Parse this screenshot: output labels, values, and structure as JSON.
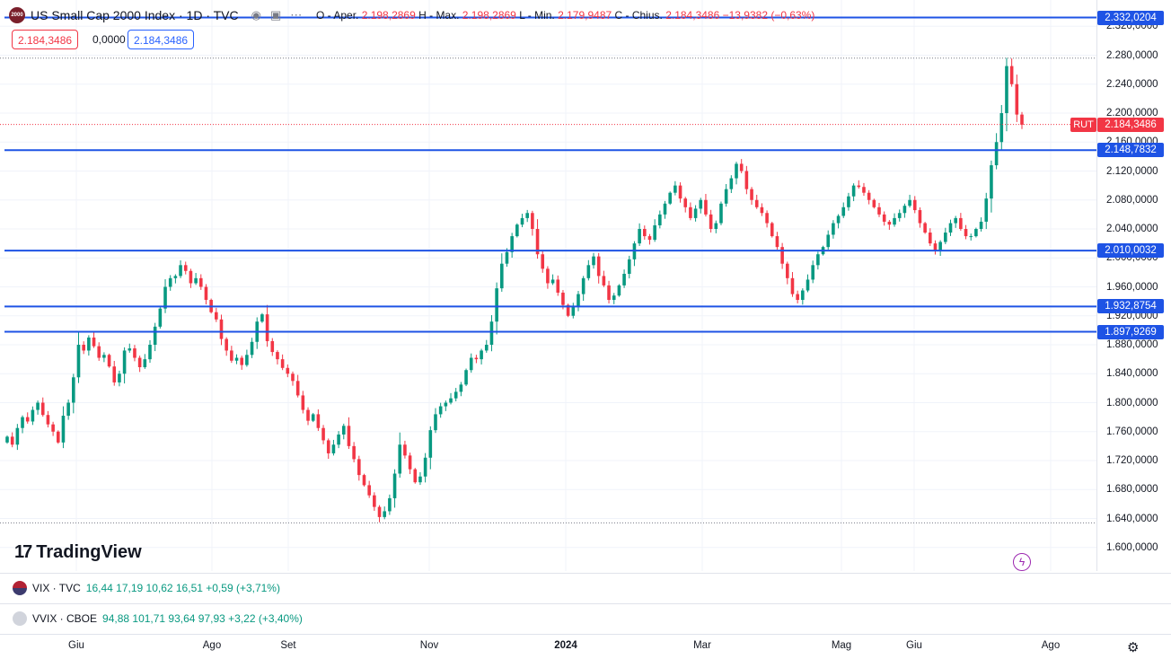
{
  "legend": {
    "logo_text": "2000",
    "title": "US Small Cap 2000 Index · 1D · TVC",
    "icons": [
      "eye-icon",
      "settings-icon",
      "more-icon"
    ],
    "ohlc": {
      "open_label": "O - Aper.",
      "open": "2.198,2869",
      "high_label": "H - Max.",
      "high": "2.198,2869",
      "low_label": "L - Min.",
      "low": "2.179,9487",
      "close_label": "C - Chius.",
      "close": "2.184,3486",
      "change": "−13,9382 (−0,63%)"
    }
  },
  "pills": {
    "sell": "2.184,3486",
    "spread": "0,0000",
    "buy": "2.184,3486"
  },
  "price_axis": {
    "ticks": [
      "2.320,0000",
      "2.280,0000",
      "2.240,0000",
      "2.200,0000",
      "2.160,0000",
      "2.120,0000",
      "2.080,0000",
      "2.040,0000",
      "2.000,0000",
      "1.960,0000",
      "1.920,0000",
      "1.880,0000",
      "1.840,0000",
      "1.800,0000",
      "1.760,0000",
      "1.720,0000",
      "1.680,0000",
      "1.640,0000",
      "1.600,0000"
    ],
    "tick_values": [
      2320,
      2280,
      2240,
      2200,
      2160,
      2120,
      2080,
      2040,
      2000,
      1960,
      1920,
      1880,
      1840,
      1800,
      1760,
      1720,
      1680,
      1640,
      1600
    ],
    "symbol_tag": "RUT",
    "last_price": "2.184,3486",
    "last_value": 2184.3486
  },
  "horizontal_lines": [
    {
      "label": "2.332,0204",
      "value": 2332.0204
    },
    {
      "label": "2.148,7832",
      "value": 2148.7832
    },
    {
      "label": "2.010,0032",
      "value": 2010.0032
    },
    {
      "label": "1.932,8754",
      "value": 1932.8754
    },
    {
      "label": "1.897,9269",
      "value": 1897.9269
    }
  ],
  "dotted_lines": [
    {
      "value": 2276
    },
    {
      "value": 1634
    }
  ],
  "time_axis": [
    {
      "label": "Giu",
      "bold": false
    },
    {
      "label": "Ago",
      "bold": false
    },
    {
      "label": "Set",
      "bold": false
    },
    {
      "label": "Nov",
      "bold": false
    },
    {
      "label": "2024",
      "bold": true
    },
    {
      "label": "Mar",
      "bold": false
    },
    {
      "label": "Mag",
      "bold": false
    },
    {
      "label": "Giu",
      "bold": false
    },
    {
      "label": "Ago",
      "bold": false
    }
  ],
  "watermark": "TradingView",
  "indicators": [
    {
      "symbol": "VIX · TVC",
      "values": "16,44  17,19  10,62  16,51  +0,59 (+3,71%)"
    },
    {
      "symbol": "VVIX · CBOE",
      "values": "94,88  101,71  93,64  97,93  +3,22 (+3,40%)"
    }
  ],
  "colors": {
    "up": "#089981",
    "down": "#f23645",
    "line": "#2962ff",
    "flag": "#1e53e5"
  },
  "chart_data": {
    "type": "candlestick",
    "series_closes": [
      1753,
      1742,
      1765,
      1780,
      1774,
      1790,
      1800,
      1783,
      1770,
      1760,
      1745,
      1782,
      1800,
      1835,
      1880,
      1872,
      1890,
      1878,
      1862,
      1866,
      1850,
      1828,
      1840,
      1872,
      1875,
      1862,
      1849,
      1860,
      1880,
      1905,
      1930,
      1960,
      1972,
      1975,
      1990,
      1982,
      1965,
      1972,
      1960,
      1942,
      1925,
      1915,
      1888,
      1872,
      1858,
      1862,
      1852,
      1866,
      1884,
      1912,
      1922,
      1885,
      1870,
      1860,
      1848,
      1840,
      1830,
      1810,
      1790,
      1775,
      1784,
      1765,
      1748,
      1730,
      1742,
      1756,
      1768,
      1740,
      1722,
      1700,
      1686,
      1672,
      1656,
      1642,
      1650,
      1668,
      1702,
      1742,
      1727,
      1708,
      1690,
      1698,
      1724,
      1762,
      1784,
      1795,
      1800,
      1806,
      1815,
      1825,
      1845,
      1862,
      1860,
      1872,
      1880,
      1912,
      1958,
      1992,
      2008,
      2030,
      2046,
      2055,
      2062,
      2040,
      2005,
      1985,
      1965,
      1970,
      1952,
      1935,
      1920,
      1932,
      1950,
      1972,
      1990,
      2002,
      1975,
      1962,
      1942,
      1948,
      1962,
      1978,
      1998,
      2020,
      2040,
      2030,
      2025,
      2045,
      2060,
      2075,
      2090,
      2100,
      2082,
      2070,
      2055,
      2068,
      2080,
      2060,
      2040,
      2048,
      2075,
      2095,
      2110,
      2130,
      2120,
      2095,
      2080,
      2070,
      2062,
      2048,
      2030,
      2015,
      1992,
      1972,
      1950,
      1942,
      1955,
      1970,
      1990,
      2005,
      2015,
      2032,
      2048,
      2058,
      2070,
      2085,
      2100,
      2098,
      2090,
      2080,
      2070,
      2060,
      2050,
      2046,
      2055,
      2062,
      2072,
      2080,
      2066,
      2048,
      2035,
      2020,
      2010,
      2022,
      2035,
      2048,
      2055,
      2040,
      2030,
      2030,
      2040,
      2050,
      2082,
      2128,
      2160,
      2200,
      2265,
      2240,
      2198,
      2184
    ],
    "last": 2184.3486,
    "ylim": [
      1580,
      2350
    ]
  }
}
